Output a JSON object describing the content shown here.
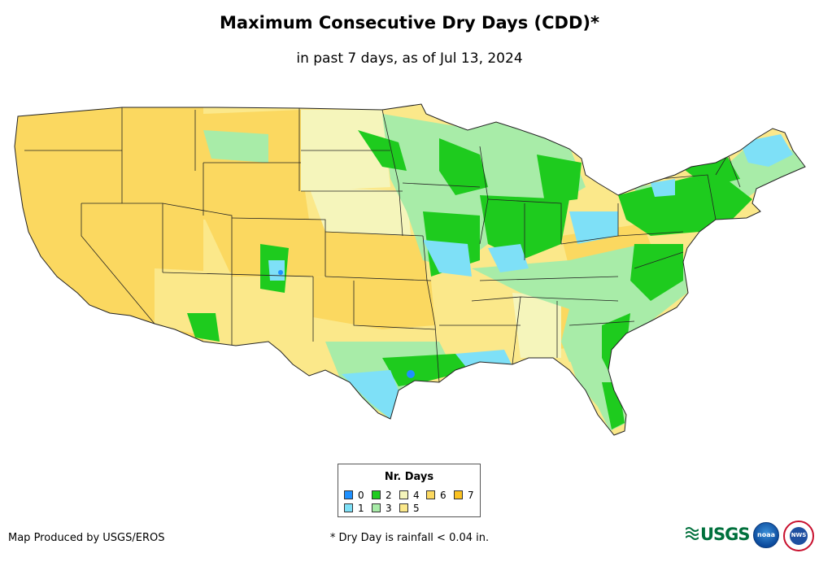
{
  "title": "Maximum Consecutive Dry Days (CDD)*",
  "subtitle": "in past 7 days, as of Jul 13, 2024",
  "legend": {
    "title": "Nr. Days",
    "items": [
      {
        "label": "0",
        "color": "#1e90ff"
      },
      {
        "label": "1",
        "color": "#7ee0f7"
      },
      {
        "label": "2",
        "color": "#1ecb1e"
      },
      {
        "label": "3",
        "color": "#a8eca8"
      },
      {
        "label": "4",
        "color": "#f5f5bb"
      },
      {
        "label": "5",
        "color": "#fbe88a"
      },
      {
        "label": "6",
        "color": "#fbd860"
      },
      {
        "label": "7",
        "color": "#fbc220"
      }
    ]
  },
  "footer": {
    "credit": "Map Produced by USGS/EROS",
    "footnote": "* Dry Day is rainfall < 0.04 in."
  },
  "logos": [
    {
      "name": "usgs-logo",
      "text": "USGS"
    },
    {
      "name": "noaa-logo",
      "text": "noaa"
    },
    {
      "name": "nws-logo",
      "text": "NWS"
    }
  ]
}
